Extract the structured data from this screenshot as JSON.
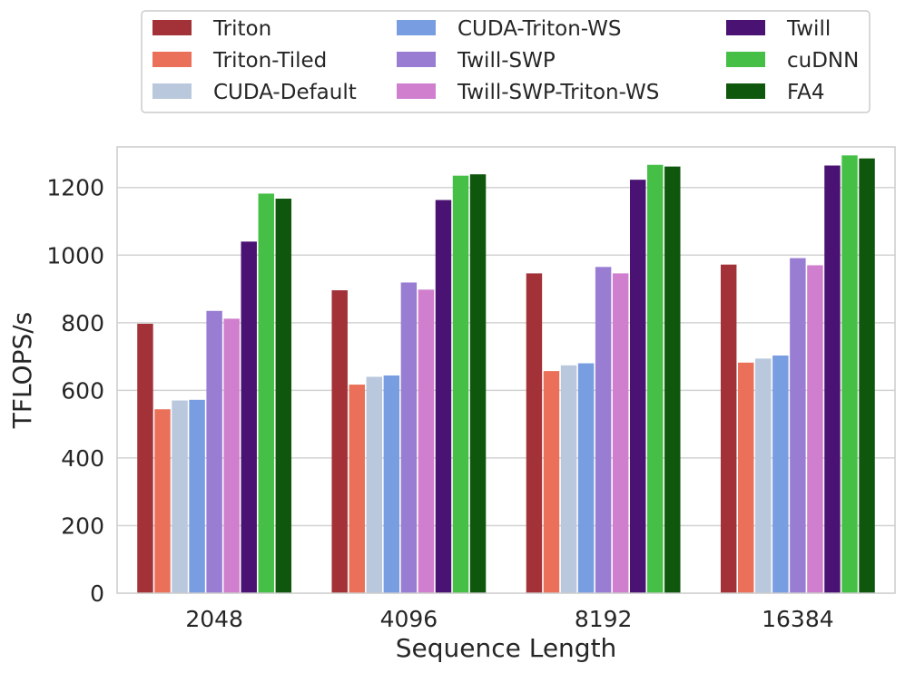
{
  "chart_data": {
    "type": "bar",
    "title": "",
    "xlabel": "Sequence Length",
    "ylabel": "TFLOPS/s",
    "ylim": [
      0,
      1320
    ],
    "yticks": [
      0,
      200,
      400,
      600,
      800,
      1000,
      1200
    ],
    "grid": "horizontal",
    "legend_position": "top-outside",
    "categories": [
      "2048",
      "4096",
      "8192",
      "16384"
    ],
    "series": [
      {
        "name": "Triton",
        "color": "#a23237",
        "values": [
          797,
          896,
          946,
          972
        ]
      },
      {
        "name": "Triton-Tiled",
        "color": "#eb7059",
        "values": [
          544,
          617,
          657,
          682
        ]
      },
      {
        "name": "CUDA-Default",
        "color": "#b9c8dc",
        "values": [
          570,
          640,
          674,
          694
        ]
      },
      {
        "name": "CUDA-Triton-WS",
        "color": "#789de0",
        "values": [
          572,
          644,
          680,
          703
        ]
      },
      {
        "name": "Twill-SWP",
        "color": "#997dd3",
        "values": [
          835,
          919,
          965,
          991
        ]
      },
      {
        "name": "Twill-SWP-Triton-WS",
        "color": "#cf7fcd",
        "values": [
          812,
          898,
          946,
          970
        ]
      },
      {
        "name": "Twill",
        "color": "#4a1273",
        "values": [
          1040,
          1163,
          1223,
          1265
        ]
      },
      {
        "name": "cuDNN",
        "color": "#46bf47",
        "values": [
          1182,
          1235,
          1267,
          1295
        ]
      },
      {
        "name": "FA4",
        "color": "#0f570d",
        "values": [
          1167,
          1239,
          1262,
          1286
        ]
      }
    ]
  }
}
